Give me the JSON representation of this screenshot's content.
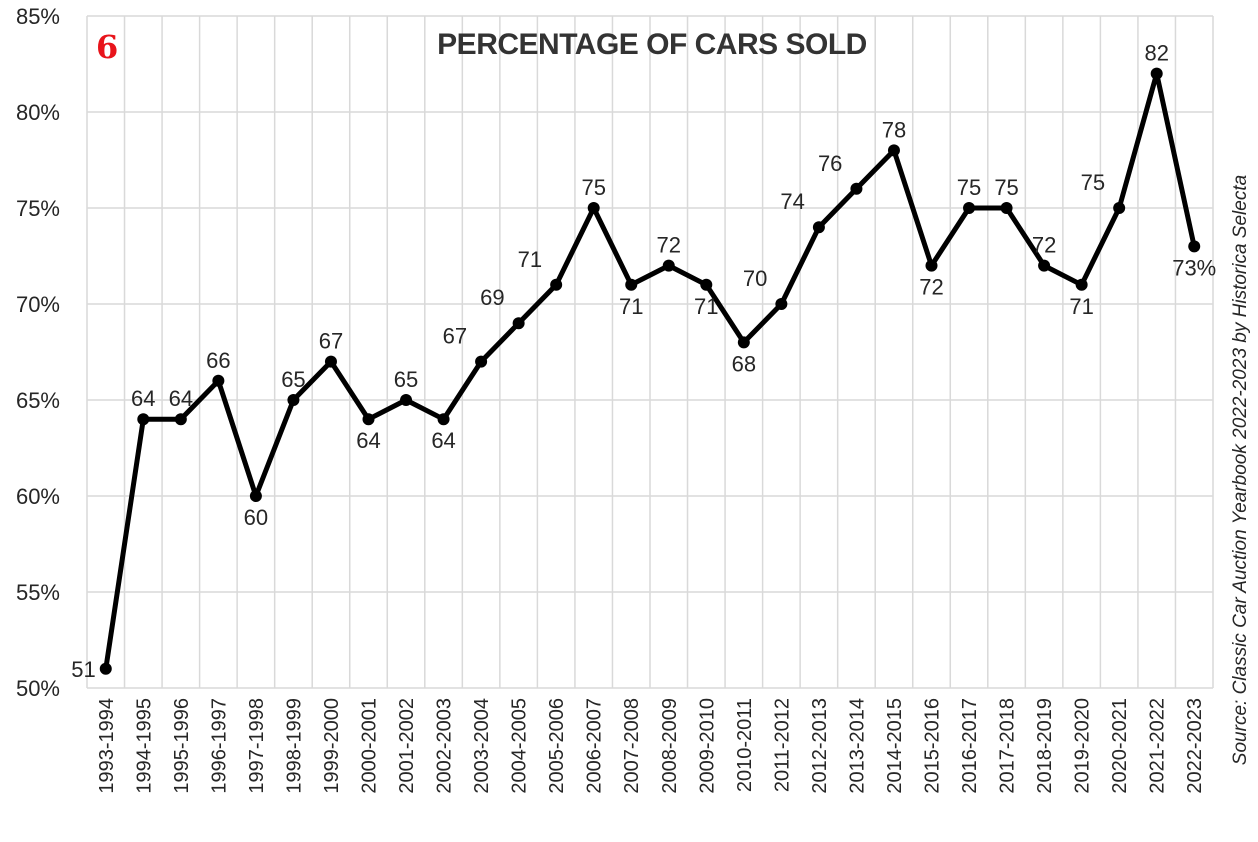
{
  "badge": "6",
  "source": "Source: Classic Car Auction Yearbook 2022-2023 by Historica Selecta",
  "colors": {
    "line": "#000000",
    "grid": "#d9d9d9",
    "badge": "#e8141b",
    "title": "#333333"
  },
  "chart_data": {
    "type": "line",
    "title": "PERCENTAGE OF CARS SOLD",
    "xlabel": "",
    "ylabel": "",
    "ylim": [
      50,
      85
    ],
    "yticks": [
      50,
      55,
      60,
      65,
      70,
      75,
      80,
      85
    ],
    "ytick_labels": [
      "50%",
      "55%",
      "60%",
      "65%",
      "70%",
      "75%",
      "80%",
      "85%"
    ],
    "grid": true,
    "categories": [
      "1993-1994",
      "1994-1995",
      "1995-1996",
      "1996-1997",
      "1997-1998",
      "1998-1999",
      "1999-2000",
      "2000-2001",
      "2001-2002",
      "2002-2003",
      "2003-2004",
      "2004-2005",
      "2005-2006",
      "2006-2007",
      "2007-2008",
      "2008-2009",
      "2009-2010",
      "2010-2011",
      "2011-2012",
      "2012-2013",
      "2013-2014",
      "2014-2015",
      "2015-2016",
      "2016-2017",
      "2017-2018",
      "2018-2019",
      "2019-2020",
      "2020-2021",
      "2021-2022",
      "2022-2023"
    ],
    "series": [
      {
        "name": "Percentage of cars sold",
        "values": [
          51,
          64,
          64,
          66,
          60,
          65,
          67,
          64,
          65,
          64,
          67,
          69,
          71,
          75,
          71,
          72,
          71,
          68,
          70,
          74,
          76,
          78,
          72,
          75,
          75,
          72,
          71,
          75,
          82,
          73
        ]
      }
    ],
    "data_labels": [
      "51",
      "64",
      "64",
      "66",
      "60",
      "65",
      "67",
      "64",
      "65",
      "64",
      "67",
      "69",
      "71",
      "75",
      "71",
      "72",
      "71",
      "68",
      "70",
      "74",
      "76",
      "78",
      "72",
      "75",
      "75",
      "72",
      "71",
      "75",
      "82",
      "73%"
    ],
    "label_positions": [
      "left",
      "above",
      "above",
      "above",
      "below",
      "above",
      "above",
      "below",
      "above",
      "below",
      "above-left",
      "above-left",
      "above-left",
      "above",
      "below",
      "above",
      "below",
      "below",
      "above-left",
      "above-left",
      "above-left",
      "above",
      "below",
      "above",
      "above",
      "above",
      "below",
      "above-left",
      "above",
      "below"
    ]
  }
}
